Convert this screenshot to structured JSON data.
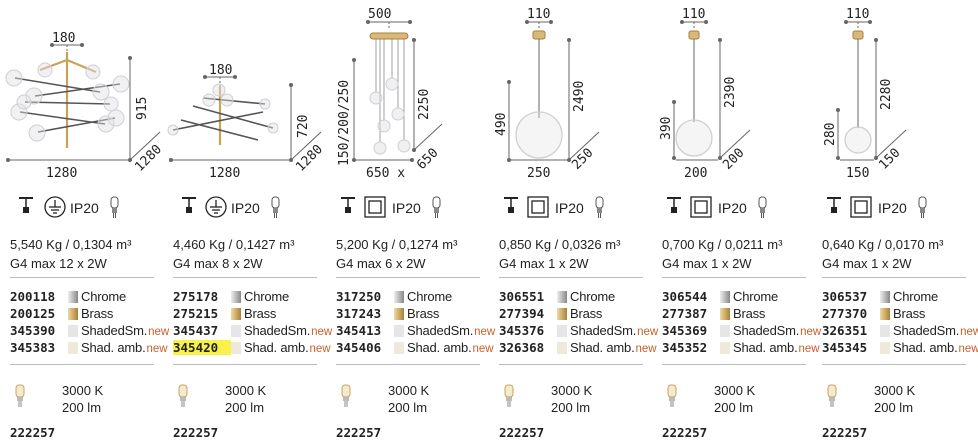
{
  "colors": {
    "chrome": "#a9a9a9",
    "brass": "#c9a25a",
    "shaded_smoke": "#e6e6e6",
    "shaded_amber": "#efe9dc",
    "new_label": "#c8602a",
    "highlight": "#f6f24a"
  },
  "products": [
    {
      "dims": [
        "180",
        "915",
        "1280",
        "1280"
      ],
      "ip": "IP20",
      "weight": "5,540 Kg / 0,1304 m³",
      "lamp": "G4 max 12 x 2W",
      "codes": [
        {
          "code": "200118",
          "finish": "Chrome",
          "new": ""
        },
        {
          "code": "200125",
          "finish": "Brass",
          "new": ""
        },
        {
          "code": "345390",
          "finish": "ShadedSm.",
          "new": "new"
        },
        {
          "code": "345383",
          "finish": "Shad. amb.",
          "new": "new"
        }
      ],
      "bulb_temp": "3000 K",
      "bulb_lm": "200 lm",
      "bulb_code": "222257"
    },
    {
      "dims": [
        "180",
        "720",
        "1280",
        "1280"
      ],
      "ip": "IP20",
      "weight": "4,460 Kg / 0,1427 m³",
      "lamp": "G4 max 8 x 2W",
      "codes": [
        {
          "code": "275178",
          "finish": "Chrome",
          "new": ""
        },
        {
          "code": "275215",
          "finish": "Brass",
          "new": ""
        },
        {
          "code": "345437",
          "finish": "ShadedSm.",
          "new": "new"
        },
        {
          "code": "345420",
          "finish": "Shad. amb.",
          "new": "new"
        }
      ],
      "bulb_temp": "3000 K",
      "bulb_lm": "200 lm",
      "bulb_code": "222257"
    },
    {
      "dims": [
        "500",
        "2250",
        "150/200/250",
        "650",
        "650 x"
      ],
      "ip": "IP20",
      "weight": "5,200 Kg / 0,1274 m³",
      "lamp": "G4 max 6 x 2W",
      "codes": [
        {
          "code": "317250",
          "finish": "Chrome",
          "new": ""
        },
        {
          "code": "317243",
          "finish": "Brass",
          "new": ""
        },
        {
          "code": "345413",
          "finish": "ShadedSm.",
          "new": "new"
        },
        {
          "code": "345406",
          "finish": "Shad. amb.",
          "new": "new"
        }
      ],
      "bulb_temp": "3000 K",
      "bulb_lm": "200 lm",
      "bulb_code": "222257"
    },
    {
      "dims": [
        "110",
        "2490",
        "490",
        "250",
        "250"
      ],
      "ip": "IP20",
      "weight": "0,850 Kg / 0,0326 m³",
      "lamp": "G4 max 1 x 2W",
      "codes": [
        {
          "code": "306551",
          "finish": "Chrome",
          "new": ""
        },
        {
          "code": "277394",
          "finish": "Brass",
          "new": ""
        },
        {
          "code": "345376",
          "finish": "ShadedSm.",
          "new": "new"
        },
        {
          "code": "326368",
          "finish": "Shad. amb.",
          "new": "new"
        }
      ],
      "bulb_temp": "3000 K",
      "bulb_lm": "200 lm",
      "bulb_code": "222257"
    },
    {
      "dims": [
        "110",
        "2390",
        "390",
        "200",
        "200"
      ],
      "ip": "IP20",
      "weight": "0,700 Kg / 0,0211 m³",
      "lamp": "G4 max 1 x 2W",
      "codes": [
        {
          "code": "306544",
          "finish": "Chrome",
          "new": ""
        },
        {
          "code": "277387",
          "finish": "Brass",
          "new": ""
        },
        {
          "code": "345369",
          "finish": "ShadedSm.",
          "new": "new"
        },
        {
          "code": "345352",
          "finish": "Shad. amb.",
          "new": "new"
        }
      ],
      "bulb_temp": "3000 K",
      "bulb_lm": "200 lm",
      "bulb_code": "222257"
    },
    {
      "dims": [
        "110",
        "2280",
        "280",
        "150",
        "150"
      ],
      "ip": "IP20",
      "weight": "0,640 Kg / 0,0170 m³",
      "lamp": "G4 max 1 x 2W",
      "codes": [
        {
          "code": "306537",
          "finish": "Chrome",
          "new": ""
        },
        {
          "code": "277370",
          "finish": "Brass",
          "new": ""
        },
        {
          "code": "326351",
          "finish": "ShadedSm.",
          "new": "new"
        },
        {
          "code": "345345",
          "finish": "Shad. amb.",
          "new": "new"
        }
      ],
      "bulb_temp": "3000 K",
      "bulb_lm": "200 lm",
      "bulb_code": "222257"
    }
  ]
}
